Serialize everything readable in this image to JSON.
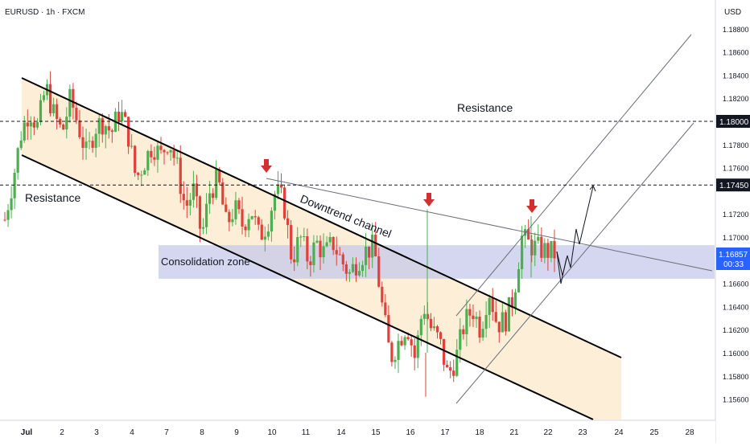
{
  "symbol_label": "EURUSD · 1h · FXCM",
  "currency_label": "USD",
  "chart_data": {
    "type": "candlestick",
    "title": "EURUSD · 1h · FXCM",
    "y_unit": "USD",
    "ylim": [
      1.155,
      1.1895
    ],
    "x_tick_labels": [
      "Jul",
      "2",
      "3",
      "4",
      "7",
      "8",
      "9",
      "10",
      "11",
      "14",
      "15",
      "16",
      "17",
      "18",
      "21",
      "22",
      "23",
      "24",
      "25",
      "28"
    ],
    "y_tick_labels": [
      "1.15600",
      "1.15800",
      "1.16000",
      "1.16200",
      "1.16400",
      "1.16600",
      "1.17000",
      "1.17200",
      "1.17600",
      "1.17800",
      "1.18200",
      "1.18400",
      "1.18600",
      "1.18800"
    ],
    "highlighted_levels": [
      {
        "label": "1.18000",
        "value": 1.18
      },
      {
        "label": "1.17450",
        "value": 1.1745
      }
    ],
    "current_price": {
      "label": "1.16857",
      "value": 1.16857,
      "countdown": "00:33"
    },
    "annotations": {
      "resistance_top": "Resistance",
      "resistance_left": "Resistance",
      "downtrend_channel": "Downtrend channel",
      "consolidation_zone": "Consolidation zone"
    },
    "consolidation_zone": {
      "from": 1.1664,
      "to": 1.1693
    },
    "candle_anchors": [
      [
        0,
        1.1715
      ],
      [
        1,
        1.175
      ],
      [
        2,
        1.179
      ],
      [
        3,
        1.181
      ],
      [
        4,
        1.1795
      ],
      [
        5,
        1.183
      ],
      [
        6,
        1.1805
      ],
      [
        7,
        1.179
      ],
      [
        8,
        1.182
      ],
      [
        9,
        1.1795
      ],
      [
        10,
        1.177
      ],
      [
        11,
        1.1795
      ],
      [
        12,
        1.18
      ],
      [
        13,
        1.179
      ],
      [
        14,
        1.181
      ],
      [
        15,
        1.179
      ],
      [
        16,
        1.175
      ],
      [
        17,
        1.1765
      ],
      [
        18,
        1.178
      ],
      [
        19,
        1.177
      ],
      [
        20,
        1.1785
      ],
      [
        21,
        1.176
      ],
      [
        22,
        1.1725
      ],
      [
        23,
        1.174
      ],
      [
        24,
        1.17
      ],
      [
        25,
        1.174
      ],
      [
        26,
        1.175
      ],
      [
        27,
        1.171
      ],
      [
        28,
        1.1725
      ],
      [
        29,
        1.171
      ],
      [
        30,
        1.1725
      ],
      [
        31,
        1.17
      ],
      [
        32,
        1.1712
      ],
      [
        33,
        1.174
      ],
      [
        34,
        1.173
      ],
      [
        35,
        1.168
      ],
      [
        36,
        1.17
      ],
      [
        37,
        1.168
      ],
      [
        38,
        1.1695
      ],
      [
        39,
        1.1685
      ],
      [
        40,
        1.1695
      ],
      [
        41,
        1.168
      ],
      [
        42,
        1.1668
      ],
      [
        43,
        1.168
      ],
      [
        44,
        1.1688
      ],
      [
        45,
        1.1692
      ],
      [
        46,
        1.164
      ],
      [
        47,
        1.1595
      ],
      [
        48,
        1.161
      ],
      [
        49,
        1.1625
      ],
      [
        50,
        1.1595
      ],
      [
        51,
        1.1642
      ],
      [
        52,
        1.162
      ],
      [
        53,
        1.161
      ],
      [
        54,
        1.158
      ],
      [
        55,
        1.1595
      ],
      [
        56,
        1.1625
      ],
      [
        57,
        1.1638
      ],
      [
        58,
        1.162
      ],
      [
        59,
        1.1655
      ],
      [
        60,
        1.1625
      ],
      [
        61,
        1.1628
      ],
      [
        62,
        1.1648
      ],
      [
        63,
        1.17
      ],
      [
        64,
        1.1693
      ],
      [
        65,
        1.169
      ],
      [
        66,
        1.1688
      ],
      [
        67,
        1.16857
      ]
    ]
  }
}
